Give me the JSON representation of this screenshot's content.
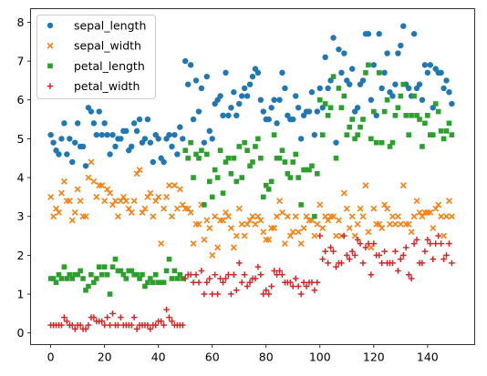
{
  "chart_data": {
    "type": "scatter",
    "title": "",
    "xlabel": "",
    "ylabel": "",
    "xlim": [
      -7.5,
      157.5
    ],
    "ylim": [
      -0.3,
      8.35
    ],
    "x_ticks": [
      0,
      20,
      40,
      60,
      80,
      100,
      120,
      140
    ],
    "y_ticks": [
      0,
      1,
      2,
      3,
      4,
      5,
      6,
      7,
      8
    ],
    "grid": false,
    "legend_position": "top-left",
    "x": [
      0,
      1,
      2,
      3,
      4,
      5,
      6,
      7,
      8,
      9,
      10,
      11,
      12,
      13,
      14,
      15,
      16,
      17,
      18,
      19,
      20,
      21,
      22,
      23,
      24,
      25,
      26,
      27,
      28,
      29,
      30,
      31,
      32,
      33,
      34,
      35,
      36,
      37,
      38,
      39,
      40,
      41,
      42,
      43,
      44,
      45,
      46,
      47,
      48,
      49,
      50,
      51,
      52,
      53,
      54,
      55,
      56,
      57,
      58,
      59,
      60,
      61,
      62,
      63,
      64,
      65,
      66,
      67,
      68,
      69,
      70,
      71,
      72,
      73,
      74,
      75,
      76,
      77,
      78,
      79,
      80,
      81,
      82,
      83,
      84,
      85,
      86,
      87,
      88,
      89,
      90,
      91,
      92,
      93,
      94,
      95,
      96,
      97,
      98,
      99,
      100,
      101,
      102,
      103,
      104,
      105,
      106,
      107,
      108,
      109,
      110,
      111,
      112,
      113,
      114,
      115,
      116,
      117,
      118,
      119,
      120,
      121,
      122,
      123,
      124,
      125,
      126,
      127,
      128,
      129,
      130,
      131,
      132,
      133,
      134,
      135,
      136,
      137,
      138,
      139,
      140,
      141,
      142,
      143,
      144,
      145,
      146,
      147,
      148,
      149
    ],
    "series": [
      {
        "name": "sepal_length",
        "marker": "circle",
        "color": "#1f77b4",
        "values": [
          5.1,
          4.9,
          4.7,
          4.6,
          5.0,
          5.4,
          4.6,
          5.0,
          4.4,
          4.9,
          5.4,
          4.8,
          4.8,
          4.3,
          5.8,
          5.7,
          5.4,
          5.1,
          5.7,
          5.1,
          5.4,
          5.1,
          4.6,
          5.1,
          4.8,
          5.0,
          5.0,
          5.2,
          5.2,
          4.7,
          4.8,
          5.4,
          5.2,
          5.5,
          4.9,
          5.0,
          5.5,
          4.9,
          4.4,
          5.1,
          5.0,
          4.5,
          4.4,
          5.0,
          5.1,
          4.8,
          5.1,
          4.6,
          5.3,
          5.0,
          7.0,
          6.4,
          6.9,
          5.5,
          6.5,
          5.7,
          6.3,
          4.9,
          6.6,
          5.2,
          5.0,
          5.9,
          6.0,
          6.1,
          5.6,
          6.7,
          5.6,
          5.8,
          6.2,
          5.6,
          5.9,
          6.1,
          6.3,
          6.1,
          6.4,
          6.6,
          6.8,
          6.7,
          6.0,
          5.7,
          5.5,
          5.5,
          5.8,
          6.0,
          5.4,
          6.0,
          6.7,
          6.3,
          5.6,
          5.5,
          5.5,
          6.1,
          5.8,
          5.0,
          5.6,
          5.7,
          5.7,
          6.2,
          5.1,
          5.7,
          6.3,
          5.8,
          7.1,
          6.3,
          6.5,
          7.6,
          4.9,
          7.3,
          6.7,
          7.2,
          6.5,
          6.4,
          6.8,
          5.7,
          5.8,
          6.4,
          6.5,
          7.7,
          7.7,
          6.0,
          6.9,
          5.6,
          7.7,
          6.3,
          6.7,
          7.2,
          6.2,
          6.1,
          6.4,
          7.2,
          7.4,
          7.9,
          6.4,
          6.3,
          6.1,
          7.7,
          6.3,
          6.4,
          6.0,
          6.9,
          6.7,
          6.9,
          5.8,
          6.8,
          6.7,
          6.7,
          6.3,
          6.5,
          6.2,
          5.9
        ]
      },
      {
        "name": "sepal_width",
        "marker": "x",
        "color": "#ff7f0e",
        "values": [
          3.5,
          3.0,
          3.2,
          3.1,
          3.6,
          3.9,
          3.4,
          3.4,
          2.9,
          3.1,
          3.7,
          3.4,
          3.0,
          3.0,
          4.0,
          4.4,
          3.9,
          3.5,
          3.8,
          3.8,
          3.4,
          3.7,
          3.6,
          3.3,
          3.4,
          3.0,
          3.4,
          3.5,
          3.4,
          3.2,
          3.1,
          3.4,
          4.1,
          4.2,
          3.1,
          3.2,
          3.5,
          3.6,
          3.0,
          3.4,
          3.5,
          2.3,
          3.2,
          3.5,
          3.8,
          3.0,
          3.8,
          3.2,
          3.7,
          3.3,
          3.2,
          3.2,
          3.1,
          2.3,
          2.8,
          2.8,
          3.3,
          2.4,
          2.9,
          2.7,
          2.0,
          3.0,
          2.2,
          2.9,
          2.9,
          3.1,
          3.0,
          2.7,
          2.2,
          2.5,
          3.2,
          2.8,
          2.5,
          2.8,
          2.9,
          3.0,
          2.8,
          3.0,
          2.9,
          2.6,
          2.4,
          2.4,
          2.7,
          2.7,
          3.0,
          3.4,
          3.1,
          2.3,
          3.0,
          2.5,
          2.6,
          3.0,
          2.6,
          2.3,
          2.7,
          3.0,
          2.9,
          2.9,
          2.5,
          2.8,
          3.3,
          2.7,
          3.0,
          2.9,
          3.0,
          3.0,
          2.5,
          2.9,
          2.5,
          3.6,
          3.2,
          2.7,
          3.0,
          2.5,
          2.8,
          3.2,
          3.0,
          3.8,
          2.6,
          2.2,
          3.2,
          2.8,
          2.8,
          2.7,
          3.3,
          3.2,
          2.8,
          3.0,
          2.8,
          3.0,
          2.8,
          3.8,
          2.8,
          2.8,
          2.6,
          3.0,
          3.4,
          3.1,
          3.0,
          3.1,
          3.1,
          3.1,
          2.7,
          3.2,
          3.3,
          3.0,
          2.5,
          3.0,
          3.4,
          3.0
        ]
      },
      {
        "name": "petal_length",
        "marker": "square",
        "color": "#2ca02c",
        "values": [
          1.4,
          1.4,
          1.3,
          1.5,
          1.4,
          1.7,
          1.4,
          1.5,
          1.4,
          1.5,
          1.5,
          1.6,
          1.4,
          1.1,
          1.2,
          1.5,
          1.3,
          1.4,
          1.7,
          1.5,
          1.7,
          1.5,
          1.0,
          1.7,
          1.9,
          1.6,
          1.6,
          1.5,
          1.4,
          1.6,
          1.6,
          1.5,
          1.5,
          1.4,
          1.5,
          1.2,
          1.3,
          1.4,
          1.3,
          1.5,
          1.3,
          1.3,
          1.3,
          1.6,
          1.9,
          1.4,
          1.6,
          1.4,
          1.5,
          1.4,
          4.7,
          4.5,
          4.9,
          4.0,
          4.6,
          4.5,
          4.7,
          3.3,
          4.6,
          3.9,
          3.5,
          4.2,
          4.0,
          4.7,
          3.6,
          4.4,
          4.5,
          4.1,
          4.5,
          3.9,
          4.8,
          4.0,
          4.9,
          4.7,
          4.3,
          4.4,
          4.8,
          5.0,
          4.5,
          3.5,
          3.8,
          3.7,
          3.9,
          5.1,
          4.5,
          4.5,
          4.7,
          4.4,
          4.1,
          4.0,
          4.4,
          4.6,
          4.0,
          3.3,
          4.2,
          4.2,
          4.2,
          4.3,
          3.0,
          4.1,
          6.0,
          5.1,
          5.9,
          5.6,
          5.8,
          6.6,
          4.5,
          6.3,
          5.8,
          6.1,
          5.1,
          5.3,
          5.5,
          5.0,
          5.1,
          5.3,
          5.5,
          6.7,
          6.9,
          5.0,
          5.7,
          4.9,
          6.7,
          4.9,
          5.7,
          6.0,
          4.8,
          4.9,
          5.6,
          5.8,
          6.1,
          6.4,
          5.6,
          5.1,
          5.6,
          6.1,
          5.6,
          5.5,
          4.8,
          5.4,
          5.6,
          5.1,
          5.1,
          5.9,
          5.7,
          5.2,
          5.0,
          5.2,
          5.4,
          5.1
        ]
      },
      {
        "name": "petal_width",
        "marker": "plus",
        "color": "#d62728",
        "values": [
          0.2,
          0.2,
          0.2,
          0.2,
          0.2,
          0.4,
          0.3,
          0.2,
          0.2,
          0.1,
          0.2,
          0.2,
          0.1,
          0.1,
          0.2,
          0.4,
          0.4,
          0.3,
          0.3,
          0.3,
          0.2,
          0.4,
          0.2,
          0.5,
          0.2,
          0.2,
          0.4,
          0.2,
          0.2,
          0.2,
          0.2,
          0.4,
          0.1,
          0.2,
          0.2,
          0.2,
          0.2,
          0.1,
          0.2,
          0.2,
          0.3,
          0.3,
          0.2,
          0.6,
          0.4,
          0.3,
          0.2,
          0.2,
          0.2,
          0.2,
          1.4,
          1.5,
          1.5,
          1.3,
          1.5,
          1.3,
          1.6,
          1.0,
          1.3,
          1.4,
          1.0,
          1.5,
          1.0,
          1.4,
          1.3,
          1.4,
          1.5,
          1.0,
          1.5,
          1.1,
          1.8,
          1.3,
          1.5,
          1.2,
          1.3,
          1.4,
          1.4,
          1.7,
          1.5,
          1.0,
          1.1,
          1.0,
          1.2,
          1.6,
          1.5,
          1.6,
          1.5,
          1.3,
          1.3,
          1.3,
          1.2,
          1.4,
          1.2,
          1.0,
          1.3,
          1.2,
          1.3,
          1.3,
          1.1,
          1.3,
          2.5,
          1.9,
          2.1,
          1.8,
          2.2,
          2.1,
          1.7,
          1.8,
          1.8,
          2.5,
          2.0,
          1.9,
          2.1,
          2.0,
          2.4,
          2.3,
          1.8,
          2.2,
          2.3,
          1.5,
          2.3,
          2.0,
          2.0,
          1.8,
          2.1,
          1.8,
          1.8,
          1.8,
          2.1,
          1.6,
          1.9,
          2.0,
          2.2,
          1.5,
          1.4,
          2.3,
          2.4,
          1.8,
          1.8,
          2.1,
          2.4,
          2.3,
          1.9,
          2.3,
          2.5,
          2.3,
          1.9,
          2.0,
          2.3,
          1.8
        ]
      }
    ]
  }
}
